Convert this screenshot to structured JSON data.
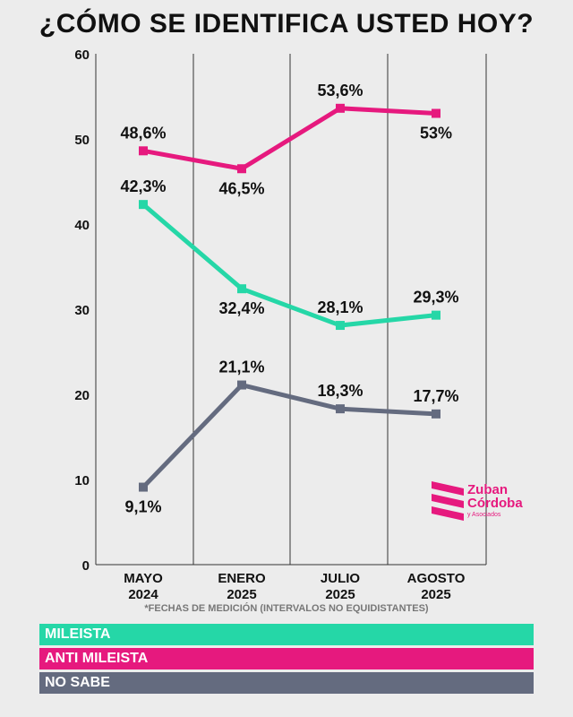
{
  "title": "¿CÓMO SE IDENTIFICA USTED HOY?",
  "footnote": "*FECHAS DE MEDICIÓN (INTERVALOS NO EQUIDISTANTES)",
  "logo": {
    "line1": "Zuban",
    "line2": "Córdoba",
    "line3": "y Asociados"
  },
  "legend": [
    {
      "label": "MILEISTA",
      "color": "#25d7a7"
    },
    {
      "label": "ANTI MILEISTA",
      "color": "#e6197e"
    },
    {
      "label": "NO SABE",
      "color": "#646b7f"
    }
  ],
  "chart_data": {
    "type": "line",
    "categories": [
      [
        "MAYO",
        "2024"
      ],
      [
        "ENERO",
        "2025"
      ],
      [
        "JULIO",
        "2025"
      ],
      [
        "AGOSTO",
        "2025"
      ]
    ],
    "ylim": [
      0,
      60
    ],
    "yticks": [
      0,
      10,
      20,
      30,
      40,
      50,
      60
    ],
    "grid": true,
    "series": [
      {
        "name": "ANTI MILEISTA",
        "color": "#e6197e",
        "values": [
          48.6,
          46.5,
          53.6,
          53.0
        ],
        "labels": [
          "48,6%",
          "46,5%",
          "53,6%",
          "53%"
        ]
      },
      {
        "name": "MILEISTA",
        "color": "#25d7a7",
        "values": [
          42.3,
          32.4,
          28.1,
          29.3
        ],
        "labels": [
          "42,3%",
          "32,4%",
          "28,1%",
          "29,3%"
        ]
      },
      {
        "name": "NO SABE",
        "color": "#646b7f",
        "values": [
          9.1,
          21.1,
          18.3,
          17.7
        ],
        "labels": [
          "9,1%",
          "21,1%",
          "18,3%",
          "17,7%"
        ]
      }
    ]
  }
}
